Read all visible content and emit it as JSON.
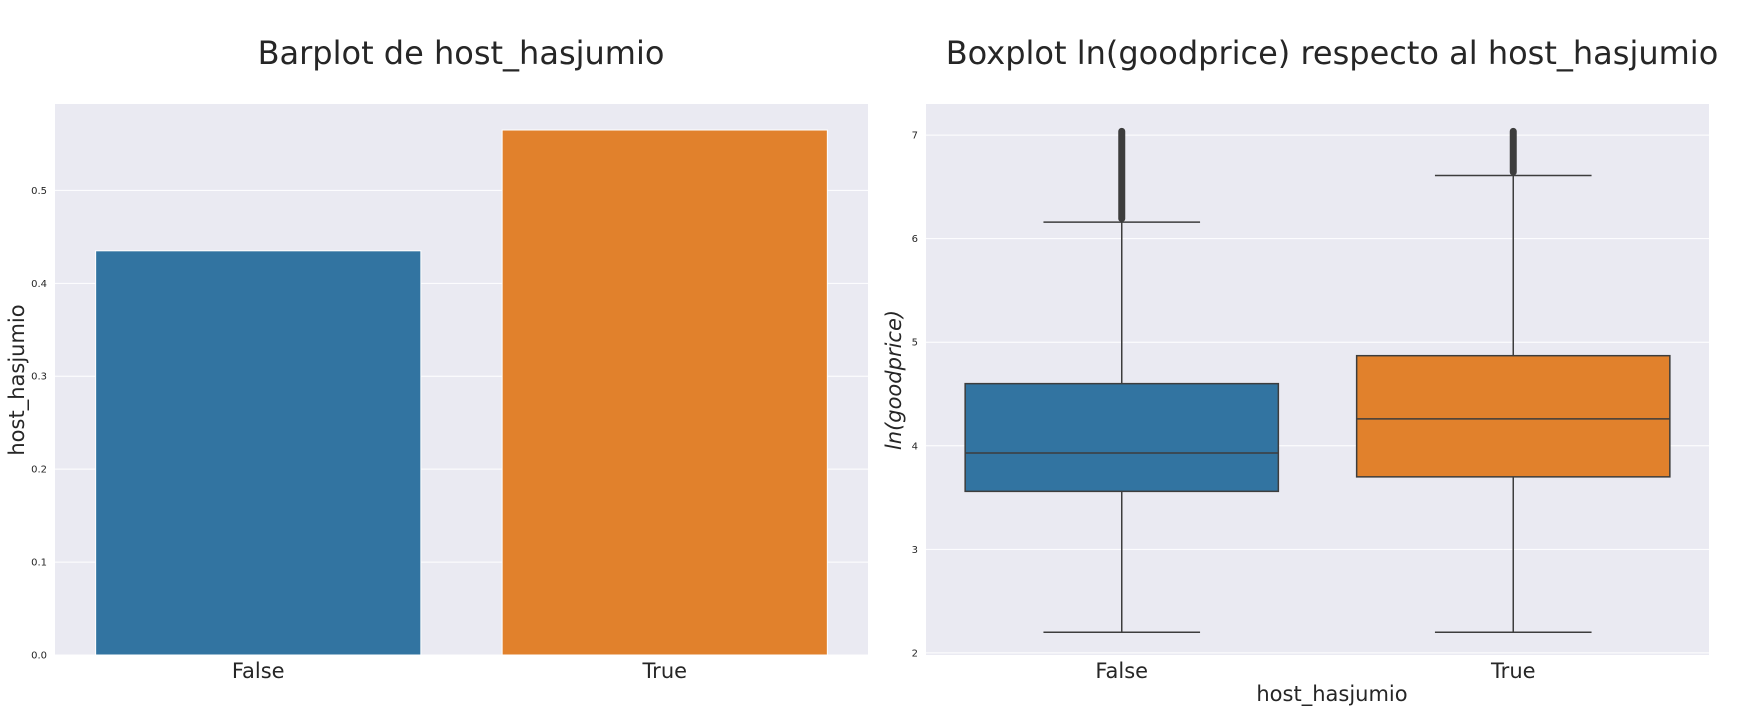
{
  "chart_data": [
    {
      "type": "bar",
      "title": "Barplot de host_hasjumio",
      "xlabel": "",
      "ylabel": "host_hasjumio",
      "categories": [
        "False",
        "True"
      ],
      "values": [
        0.435,
        0.565
      ],
      "colors": [
        "#3274a1",
        "#e1812c"
      ],
      "ylim": [
        0,
        0.593
      ],
      "yticks": [
        "0.0",
        "0.1",
        "0.2",
        "0.3",
        "0.4",
        "0.5"
      ],
      "grid": true,
      "background": "#eaeaf2"
    },
    {
      "type": "box",
      "title": "Boxplot ln(goodprice) respecto al host_hasjumio",
      "xlabel": "host_hasjumio",
      "ylabel": "ln(goodprice)",
      "categories": [
        "False",
        "True"
      ],
      "colors": [
        "#3274a1",
        "#e1812c"
      ],
      "boxes": [
        {
          "name": "False",
          "whisker_low": 2.2,
          "q1": 3.56,
          "median": 3.93,
          "q3": 4.6,
          "whisker_high": 6.16,
          "outliers_from": 6.16,
          "outliers_to": 7.07
        },
        {
          "name": "True",
          "whisker_low": 2.2,
          "q1": 3.7,
          "median": 4.26,
          "q3": 4.87,
          "whisker_high": 6.61,
          "outliers_from": 6.61,
          "outliers_to": 7.07
        }
      ],
      "ylim": [
        1.98,
        7.3
      ],
      "yticks": [
        "2",
        "3",
        "4",
        "5",
        "6",
        "7"
      ],
      "grid": true,
      "background": "#eaeaf2"
    }
  ]
}
